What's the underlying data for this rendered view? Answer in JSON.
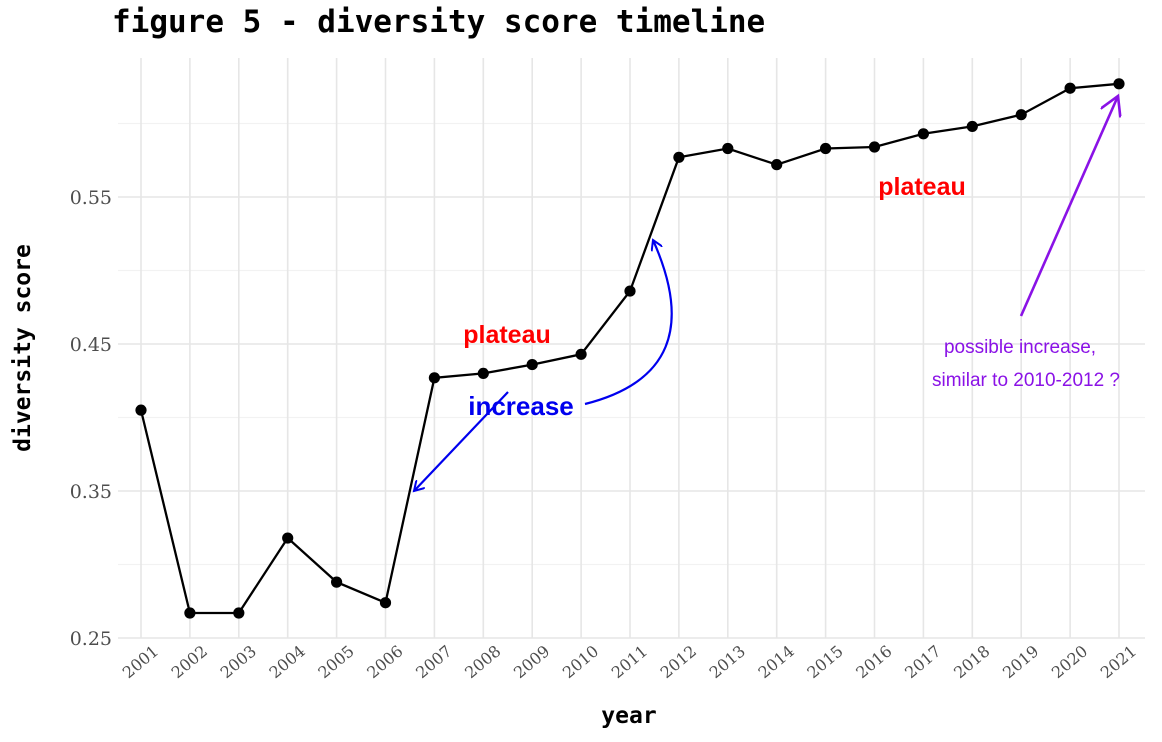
{
  "chart_data": {
    "type": "line",
    "title": "figure 5 - diversity score timeline",
    "xlabel": "year",
    "ylabel": "diversity score",
    "x": [
      "2001",
      "2002",
      "2003",
      "2004",
      "2005",
      "2006",
      "2007",
      "2008",
      "2009",
      "2010",
      "2011",
      "2012",
      "2013",
      "2014",
      "2015",
      "2016",
      "2017",
      "2018",
      "2019",
      "2020",
      "2021"
    ],
    "series": [
      {
        "values": [
          0.405,
          0.267,
          0.267,
          0.318,
          0.288,
          0.274,
          0.427,
          0.43,
          0.436,
          0.443,
          0.486,
          0.577,
          0.583,
          0.572,
          0.583,
          0.584,
          0.593,
          0.598,
          0.606,
          0.624,
          0.627
        ]
      }
    ],
    "y_ticks": [
      "0.25",
      "0.35",
      "0.45",
      "0.55"
    ],
    "ylim": [
      0.25,
      0.65
    ],
    "grid": true,
    "annotations": {
      "plateau_1": "plateau",
      "plateau_2": "plateau",
      "increase": "increase",
      "possible_line1": "possible increase,",
      "possible_line2": "similar to 2010-2012 ?"
    },
    "colors": {
      "line": "#000000",
      "plateau": "#ff0000",
      "increase": "#0000ee",
      "possible": "#8a12e6"
    }
  }
}
